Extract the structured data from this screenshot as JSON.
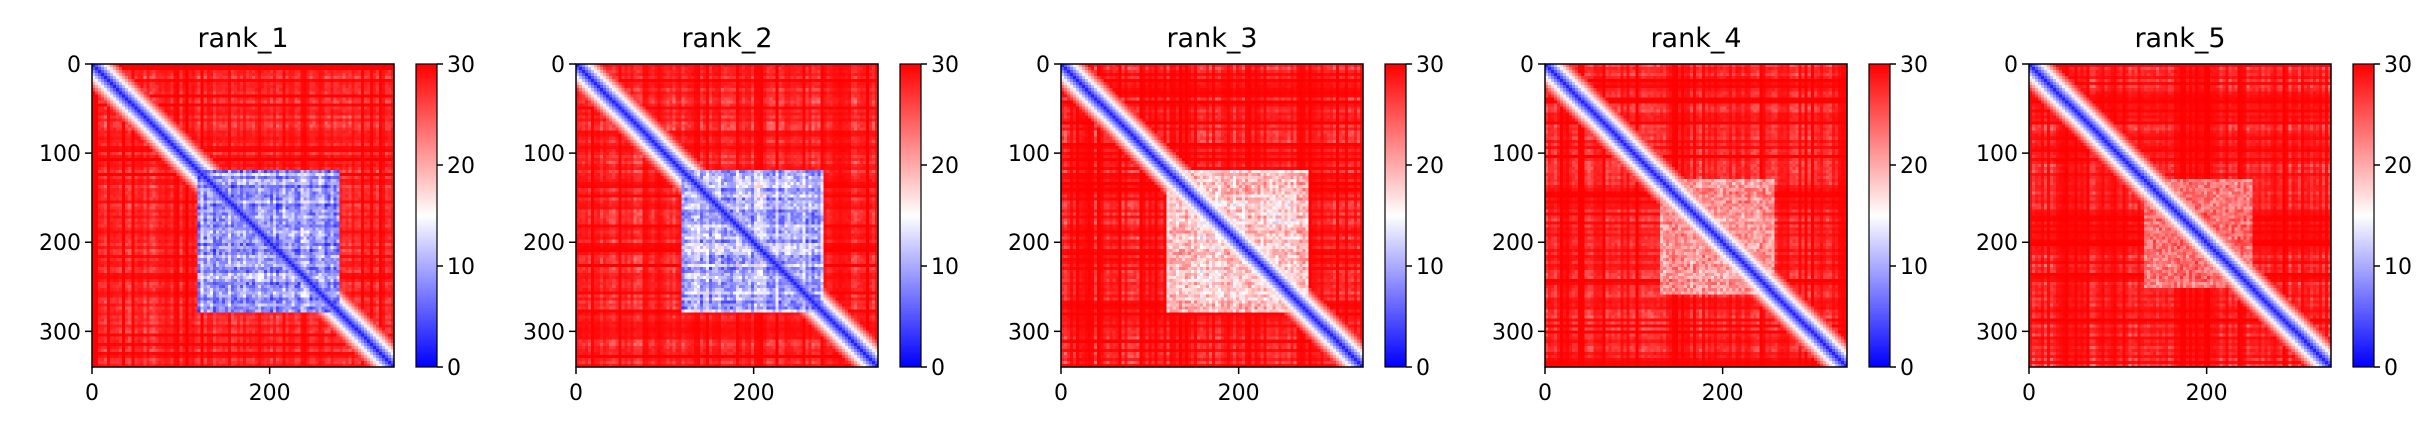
{
  "figure": {
    "layout": "1x5 grid of heatmaps, each with its own vertical colorbar on the right"
  },
  "chart_data": [
    {
      "type": "heatmap",
      "title": "rank_1",
      "xlim": [
        0,
        340
      ],
      "ylim": [
        340,
        0
      ],
      "xticks": [
        0,
        200
      ],
      "yticks": [
        0,
        100,
        200,
        300
      ],
      "matrix_size": 340,
      "color_scale": {
        "min": 0,
        "max": 30,
        "ticks": [
          0,
          10,
          20,
          30
        ],
        "colormap": "bwr",
        "low": "#0000ff",
        "mid": "#ffffff",
        "high": "#ff0000"
      },
      "description": "Distance-like map; blue diagonal band, blue block ~120-280 on both axes, red elsewhere",
      "block": {
        "start": 120,
        "end": 280,
        "strength": 1.0
      }
    },
    {
      "type": "heatmap",
      "title": "rank_2",
      "xlim": [
        0,
        340
      ],
      "ylim": [
        340,
        0
      ],
      "xticks": [
        0,
        200
      ],
      "yticks": [
        0,
        100,
        200,
        300
      ],
      "matrix_size": 340,
      "color_scale": {
        "min": 0,
        "max": 30,
        "ticks": [
          0,
          10,
          20,
          30
        ],
        "colormap": "bwr",
        "low": "#0000ff",
        "mid": "#ffffff",
        "high": "#ff0000"
      },
      "block": {
        "start": 120,
        "end": 280,
        "strength": 0.95
      }
    },
    {
      "type": "heatmap",
      "title": "rank_3",
      "xlim": [
        0,
        340
      ],
      "ylim": [
        340,
        0
      ],
      "xticks": [
        0,
        200
      ],
      "yticks": [
        0,
        100,
        200,
        300
      ],
      "matrix_size": 340,
      "color_scale": {
        "min": 0,
        "max": 30,
        "ticks": [
          0,
          10,
          20,
          30
        ],
        "colormap": "bwr",
        "low": "#0000ff",
        "mid": "#ffffff",
        "high": "#ff0000"
      },
      "block": {
        "start": 120,
        "end": 280,
        "strength": 0.6
      }
    },
    {
      "type": "heatmap",
      "title": "rank_4",
      "xlim": [
        0,
        340
      ],
      "ylim": [
        340,
        0
      ],
      "xticks": [
        0,
        200
      ],
      "yticks": [
        0,
        100,
        200,
        300
      ],
      "matrix_size": 340,
      "color_scale": {
        "min": 0,
        "max": 30,
        "ticks": [
          0,
          10,
          20,
          30
        ],
        "colormap": "bwr",
        "low": "#0000ff",
        "mid": "#ffffff",
        "high": "#ff0000"
      },
      "block": {
        "start": 130,
        "end": 260,
        "strength": 0.45
      }
    },
    {
      "type": "heatmap",
      "title": "rank_5",
      "xlim": [
        0,
        340
      ],
      "ylim": [
        340,
        0
      ],
      "xticks": [
        0,
        200
      ],
      "yticks": [
        0,
        100,
        200,
        300
      ],
      "matrix_size": 340,
      "color_scale": {
        "min": 0,
        "max": 30,
        "ticks": [
          0,
          10,
          20,
          30
        ],
        "colormap": "bwr",
        "low": "#0000ff",
        "mid": "#ffffff",
        "high": "#ff0000"
      },
      "block": {
        "start": 130,
        "end": 250,
        "strength": 0.35
      }
    }
  ]
}
